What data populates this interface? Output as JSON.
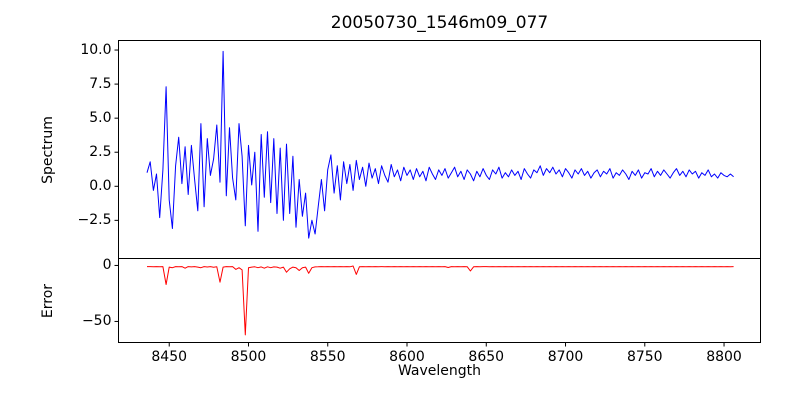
{
  "figure": {
    "background": "#ffffff",
    "axis_color": "#000000"
  },
  "chart_data": [
    {
      "id": "spectrum",
      "type": "line",
      "title": "20050730_1546m09_077",
      "ylabel": "Spectrum",
      "xlabel": "",
      "line_color": "#0000ff",
      "grid": false,
      "legend": null,
      "xlim": [
        8418,
        8823
      ],
      "ylim": [
        -5.3,
        10.7
      ],
      "yticks": [
        10.0,
        7.5,
        5.0,
        2.5,
        0.0,
        -2.5
      ],
      "ytick_labels": [
        "10.0",
        "7.5",
        "5.0",
        "2.5",
        "0.0",
        "−2.5"
      ],
      "xticks": [],
      "xtick_labels": [],
      "x_start": 8436,
      "x_step": 2,
      "values": [
        1.0,
        1.8,
        -0.3,
        0.9,
        -2.3,
        1.2,
        7.3,
        -1.0,
        -3.1,
        1.5,
        3.6,
        0.2,
        2.9,
        -0.6,
        3.0,
        0.5,
        -1.8,
        4.6,
        -1.5,
        3.5,
        0.8,
        2.0,
        4.5,
        0.3,
        9.9,
        -0.7,
        4.3,
        0.6,
        -1.0,
        4.6,
        2.2,
        -2.9,
        3.0,
        0.1,
        2.5,
        -3.3,
        3.8,
        -0.8,
        4.0,
        -1.2,
        3.5,
        -2.0,
        2.8,
        -2.5,
        3.1,
        -2.0,
        2.2,
        -3.0,
        0.5,
        -2.2,
        -0.5,
        -3.8,
        -2.5,
        -3.5,
        -1.5,
        0.5,
        -1.8,
        1.2,
        2.3,
        -0.5,
        1.5,
        -1.0,
        1.8,
        0.2,
        1.6,
        -0.3,
        1.9,
        0.5,
        1.4,
        0.0,
        1.7,
        0.6,
        1.3,
        0.2,
        1.5,
        0.8,
        0.3,
        1.6,
        0.7,
        1.2,
        0.4,
        1.4,
        0.8,
        1.2,
        0.5,
        1.3,
        0.7,
        1.1,
        0.4,
        1.4,
        0.9,
        0.5,
        1.2,
        0.8,
        1.3,
        0.6,
        1.0,
        1.4,
        0.7,
        1.1,
        0.5,
        1.2,
        0.9,
        0.4,
        1.1,
        0.7,
        1.3,
        0.8,
        0.5,
        1.2,
        0.9,
        1.4,
        0.6,
        1.0,
        0.7,
        1.2,
        0.8,
        1.1,
        0.5,
        1.3,
        0.9,
        0.6,
        1.2,
        1.0,
        1.5,
        0.8,
        1.3,
        1.0,
        1.4,
        0.9,
        1.2,
        0.7,
        1.3,
        1.0,
        0.6,
        1.2,
        0.9,
        1.3,
        0.8,
        1.1,
        0.6,
        1.0,
        1.2,
        0.7,
        1.1,
        0.9,
        1.3,
        0.6,
        1.0,
        0.8,
        1.2,
        0.9,
        0.5,
        1.1,
        0.8,
        1.2,
        0.6,
        1.0,
        0.9,
        1.3,
        0.7,
        1.1,
        0.8,
        1.2,
        0.9,
        0.6,
        1.0,
        1.3,
        0.8,
        1.1,
        0.7,
        1.2,
        0.9,
        1.1,
        0.6,
        1.0,
        0.8,
        1.2,
        0.7,
        0.9,
        0.6,
        1.0,
        0.8,
        0.7,
        0.9,
        0.7
      ]
    },
    {
      "id": "error",
      "type": "line",
      "title": "",
      "ylabel": "Error",
      "xlabel": "Wavelength",
      "line_color": "#ff0000",
      "grid": false,
      "legend": null,
      "xlim": [
        8418,
        8823
      ],
      "ylim": [
        -68.8,
        6.2
      ],
      "yticks": [
        0,
        -50
      ],
      "ytick_labels": [
        "0",
        "−50"
      ],
      "xticks": [
        8450,
        8500,
        8550,
        8600,
        8650,
        8700,
        8750,
        8800
      ],
      "xtick_labels": [
        "8450",
        "8500",
        "8550",
        "8600",
        "8650",
        "8700",
        "8750",
        "8800"
      ],
      "x_start": 8436,
      "x_step": 2,
      "values": [
        -1.0,
        -1.0,
        -1.2,
        -1.0,
        -1.1,
        -1.0,
        -17.0,
        -1.5,
        -2.0,
        -1.0,
        -1.2,
        -1.0,
        -2.5,
        -1.0,
        -1.3,
        -1.0,
        -1.5,
        -2.0,
        -1.0,
        -1.4,
        -1.0,
        -1.6,
        -1.2,
        -15.0,
        -1.5,
        -1.0,
        -1.2,
        -1.0,
        -3.5,
        -2.0,
        -4.0,
        -62.0,
        -2.0,
        -1.5,
        -1.2,
        -2.0,
        -1.3,
        -2.5,
        -1.2,
        -2.0,
        -1.3,
        -1.5,
        -2.5,
        -1.5,
        -6.0,
        -3.0,
        -1.5,
        -2.0,
        -4.5,
        -2.0,
        -1.5,
        -7.0,
        -2.0,
        -1.3,
        -1.2,
        -1.0,
        -1.2,
        -1.0,
        -1.1,
        -1.0,
        -1.2,
        -1.0,
        -1.1,
        -1.0,
        -1.2,
        -0.5,
        -8.0,
        -1.2,
        -1.0,
        -1.1,
        -1.0,
        -1.1,
        -1.0,
        -1.1,
        -1.0,
        -1.1,
        -1.0,
        -1.1,
        -1.0,
        -1.1,
        -1.0,
        -1.1,
        -1.0,
        -1.1,
        -1.0,
        -1.1,
        -1.0,
        -1.1,
        -1.0,
        -1.1,
        -1.0,
        -1.1,
        -1.0,
        -1.1,
        -1.0,
        -1.8,
        -1.0,
        -1.1,
        -1.0,
        -1.1,
        -1.0,
        -1.1,
        -5.0,
        -1.2,
        -1.0,
        -1.1,
        -1.0,
        -1.0,
        -1.1,
        -1.0,
        -1.1,
        -1.0,
        -1.1,
        -1.0,
        -1.1,
        -1.0,
        -1.1,
        -1.0,
        -1.1,
        -1.0,
        -1.1,
        -1.0,
        -1.1,
        -1.0,
        -1.1,
        -1.0,
        -1.1,
        -1.0,
        -1.1,
        -1.0,
        -1.1,
        -1.0,
        -1.1,
        -1.0,
        -1.1,
        -1.0,
        -1.1,
        -1.0,
        -1.1,
        -1.0,
        -1.1,
        -1.0,
        -1.1,
        -1.0,
        -1.1,
        -1.0,
        -1.1,
        -1.0,
        -1.1,
        -1.0,
        -1.1,
        -1.0,
        -1.1,
        -1.0,
        -1.1,
        -1.0,
        -1.1,
        -1.0,
        -1.1,
        -1.0,
        -1.1,
        -1.0,
        -1.1,
        -1.0,
        -1.1,
        -1.0,
        -1.1,
        -1.0,
        -1.1,
        -1.0,
        -1.1,
        -1.0,
        -1.1,
        -1.0,
        -1.1,
        -1.0,
        -1.1,
        -1.0,
        -1.1,
        -1.0,
        -1.1,
        -1.0,
        -1.1,
        -1.0,
        -1.1,
        -1.0
      ]
    }
  ]
}
